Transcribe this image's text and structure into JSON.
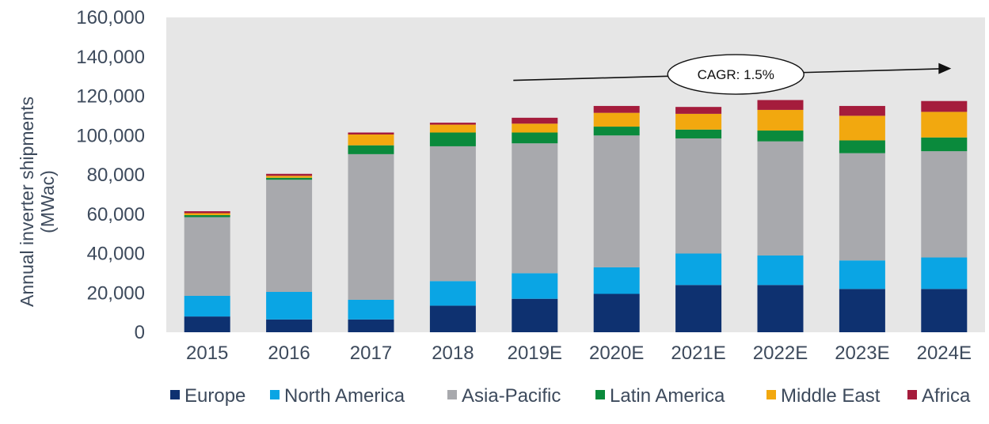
{
  "chart_data": {
    "type": "bar",
    "stacked": true,
    "categories": [
      "2015",
      "2016",
      "2017",
      "2018",
      "2019E",
      "2020E",
      "2021E",
      "2022E",
      "2023E",
      "2024E"
    ],
    "series": [
      {
        "name": "Europe",
        "color": "#0e3170",
        "values": [
          8000,
          6500,
          6500,
          13500,
          17000,
          19500,
          24000,
          24000,
          22000,
          22000
        ]
      },
      {
        "name": "North America",
        "color": "#0aa5e4",
        "values": [
          10500,
          14000,
          10000,
          12500,
          13000,
          13500,
          16000,
          15000,
          14500,
          16000
        ]
      },
      {
        "name": "Asia-Pacific",
        "color": "#a8a9ad",
        "values": [
          40000,
          57000,
          74000,
          68500,
          66000,
          67000,
          58500,
          58000,
          54500,
          54000
        ]
      },
      {
        "name": "Latin America",
        "color": "#0a8a3c",
        "values": [
          1000,
          1000,
          4500,
          7000,
          5500,
          4500,
          4500,
          5500,
          6500,
          7000
        ]
      },
      {
        "name": "Middle East",
        "color": "#f2a80f",
        "values": [
          1000,
          1000,
          5500,
          4000,
          4500,
          7000,
          8000,
          10500,
          12500,
          13000
        ]
      },
      {
        "name": "Africa",
        "color": "#a51c3c",
        "values": [
          1000,
          1000,
          1000,
          1000,
          3000,
          3500,
          3500,
          5000,
          5000,
          5500
        ]
      }
    ],
    "title": "",
    "xlabel": "",
    "ylabel": "Annual inverter shipments (MWac)",
    "ylim": [
      0,
      160000
    ],
    "yticks": [
      0,
      20000,
      40000,
      60000,
      80000,
      100000,
      120000,
      140000,
      160000
    ],
    "ytick_labels": [
      "0",
      "20,000",
      "40,000",
      "60,000",
      "80,000",
      "100,000",
      "120,000",
      "140,000",
      "160,000"
    ],
    "grid": false,
    "plot_background": "#e6e6e6",
    "legend_position": "bottom",
    "annotation": {
      "text": "CAGR: 1.5%",
      "from_category": "2019E",
      "to_category": "2024E",
      "y_start": 128000,
      "y_end": 134000
    }
  },
  "y_axis_label_line1": "Annual inverter shipments",
  "y_axis_label_line2": "(MWac)"
}
